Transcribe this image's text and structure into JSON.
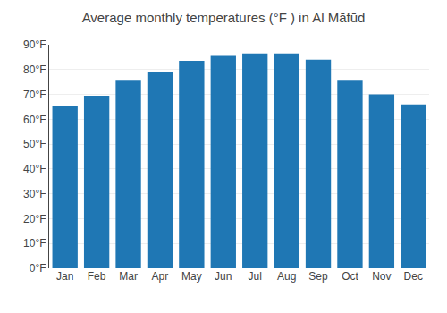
{
  "chart_data": {
    "type": "bar",
    "title": "Average monthly temperatures (°F ) in Al Māfūd",
    "categories": [
      "Jan",
      "Feb",
      "Mar",
      "Apr",
      "May",
      "Jun",
      "Jul",
      "Aug",
      "Sep",
      "Oct",
      "Nov",
      "Dec"
    ],
    "values": [
      65.5,
      69.5,
      75.5,
      79.0,
      83.5,
      85.5,
      86.5,
      86.5,
      84.0,
      75.5,
      70.0,
      66.0
    ],
    "ylim": [
      0,
      90
    ],
    "yticks": [
      {
        "value": 0,
        "label": "0°F"
      },
      {
        "value": 10,
        "label": "10°F"
      },
      {
        "value": 20,
        "label": "20°F"
      },
      {
        "value": 30,
        "label": "30°F"
      },
      {
        "value": 40,
        "label": "40°F"
      },
      {
        "value": 50,
        "label": "50°F"
      },
      {
        "value": 60,
        "label": "60°F"
      },
      {
        "value": 70,
        "label": "70°F"
      },
      {
        "value": 80,
        "label": "80°F"
      },
      {
        "value": 90,
        "label": "90°F"
      }
    ],
    "grid": true
  }
}
